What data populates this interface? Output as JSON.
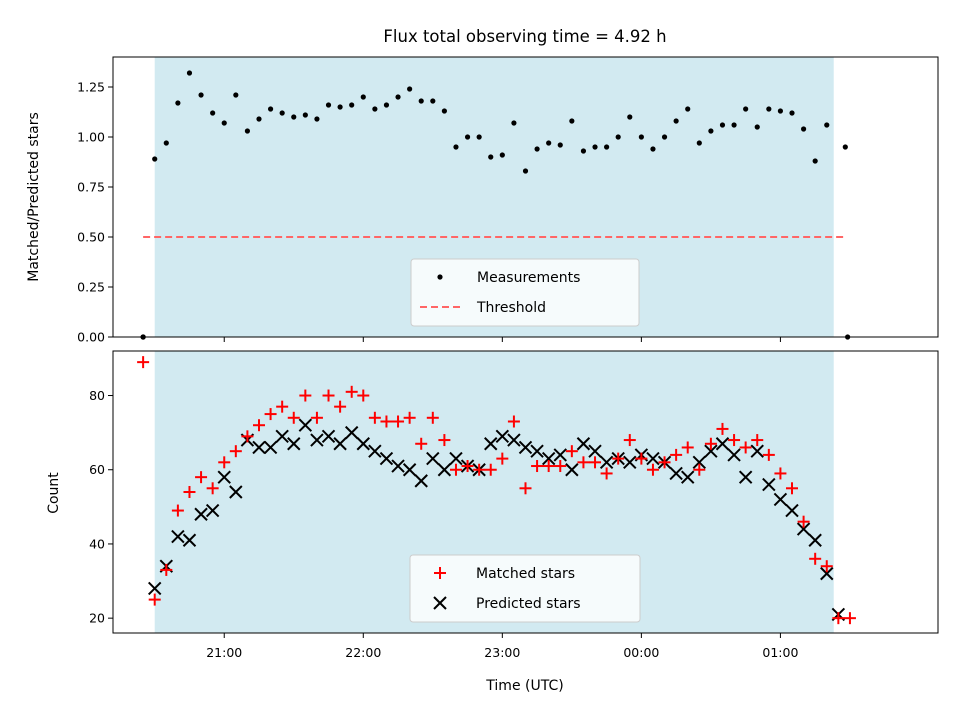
{
  "chart_data": [
    {
      "type": "scatter",
      "title": "Flux total observing time = 4.92 h",
      "xlabel": "",
      "ylabel": "Matched/Predicted stars",
      "xlim": [
        "20:12",
        "02:08"
      ],
      "ylim": [
        0,
        1.4
      ],
      "x_axis_type": "time",
      "xticks": [
        "21:00",
        "22:00",
        "23:00",
        "00:00",
        "01:00"
      ],
      "show_x_tick_labels": false,
      "yticks": [
        "0.00",
        "0.25",
        "0.50",
        "0.75",
        "1.00",
        "1.25"
      ],
      "grid": false,
      "legend_position": "lower-center",
      "shaded_range": [
        "20:30",
        "01:23"
      ],
      "shade_color": "#add8e6",
      "series": [
        {
          "name": "Measurements",
          "style": "dot",
          "color": "#000000",
          "x": [
            "20:25",
            "20:30",
            "20:35",
            "20:40",
            "20:45",
            "20:50",
            "20:55",
            "21:00",
            "21:05",
            "21:10",
            "21:15",
            "21:20",
            "21:25",
            "21:30",
            "21:35",
            "21:40",
            "21:45",
            "21:50",
            "21:55",
            "22:00",
            "22:05",
            "22:10",
            "22:15",
            "22:20",
            "22:25",
            "22:30",
            "22:35",
            "22:40",
            "22:45",
            "22:50",
            "22:55",
            "23:00",
            "23:05",
            "23:10",
            "23:15",
            "23:20",
            "23:25",
            "23:30",
            "23:35",
            "23:40",
            "23:45",
            "23:50",
            "23:55",
            "00:00",
            "00:05",
            "00:10",
            "00:15",
            "00:20",
            "00:25",
            "00:30",
            "00:35",
            "00:40",
            "00:45",
            "00:50",
            "00:55",
            "01:00",
            "01:05",
            "01:10",
            "01:15",
            "01:20",
            "01:28"
          ],
          "values": [
            0.0,
            0.89,
            0.97,
            1.17,
            1.32,
            1.21,
            1.12,
            1.07,
            1.21,
            1.03,
            1.09,
            1.14,
            1.12,
            1.1,
            1.11,
            1.09,
            1.16,
            1.15,
            1.16,
            1.2,
            1.14,
            1.16,
            1.2,
            1.24,
            1.18,
            1.18,
            1.13,
            0.95,
            1.0,
            1.0,
            0.9,
            0.91,
            1.07,
            0.83,
            0.94,
            0.97,
            0.96,
            1.08,
            0.93,
            0.95,
            0.95,
            1.0,
            1.1,
            1.0,
            0.94,
            1.0,
            1.08,
            1.14,
            0.97,
            1.03,
            1.06,
            1.06,
            1.14,
            1.05,
            1.14,
            1.13,
            1.12,
            1.04,
            0.88,
            1.06,
            0.95
          ]
        },
        {
          "name": "Threshold",
          "style": "dashed-line",
          "color": "#ff6666",
          "x": [
            "20:25",
            "01:28"
          ],
          "values": [
            0.5,
            0.5
          ]
        }
      ],
      "extra_points": [
        {
          "x": "20:25",
          "y": 0.0
        },
        {
          "x": "01:29",
          "y": 0.0
        }
      ]
    },
    {
      "type": "scatter",
      "title": "",
      "xlabel": "Time (UTC)",
      "ylabel": "Count",
      "xlim": [
        "20:12",
        "02:08"
      ],
      "ylim": [
        16,
        92
      ],
      "x_axis_type": "time",
      "xticks": [
        "21:00",
        "22:00",
        "23:00",
        "00:00",
        "01:00"
      ],
      "yticks": [
        "20",
        "40",
        "60",
        "80"
      ],
      "grid": false,
      "legend_position": "lower-center",
      "shaded_range": [
        "20:30",
        "01:23"
      ],
      "shade_color": "#add8e6",
      "x": [
        "20:25",
        "20:30",
        "20:35",
        "20:40",
        "20:45",
        "20:50",
        "20:55",
        "21:00",
        "21:05",
        "21:10",
        "21:15",
        "21:20",
        "21:25",
        "21:30",
        "21:35",
        "21:40",
        "21:45",
        "21:50",
        "21:55",
        "22:00",
        "22:05",
        "22:10",
        "22:15",
        "22:20",
        "22:25",
        "22:30",
        "22:35",
        "22:40",
        "22:45",
        "22:50",
        "22:55",
        "23:00",
        "23:05",
        "23:10",
        "23:15",
        "23:20",
        "23:25",
        "23:30",
        "23:35",
        "23:40",
        "23:45",
        "23:50",
        "23:55",
        "00:00",
        "00:05",
        "00:10",
        "00:15",
        "00:20",
        "00:25",
        "00:30",
        "00:35",
        "00:40",
        "00:45",
        "00:50",
        "00:55",
        "01:00",
        "01:05",
        "01:10",
        "01:15",
        "01:20",
        "01:25",
        "01:30"
      ],
      "series": [
        {
          "name": "Matched stars",
          "style": "plus",
          "color": "#ff0000",
          "values": [
            89,
            25,
            33,
            49,
            54,
            58,
            55,
            62,
            65,
            69,
            72,
            75,
            77,
            74,
            80,
            74,
            80,
            77,
            81,
            80,
            74,
            73,
            73,
            74,
            67,
            74,
            68,
            60,
            61,
            60,
            60,
            63,
            73,
            55,
            61,
            61,
            61,
            65,
            62,
            62,
            59,
            63,
            68,
            63,
            60,
            62,
            64,
            66,
            60,
            67,
            71,
            68,
            66,
            68,
            64,
            59,
            55,
            46,
            36,
            34,
            20,
            20
          ]
        },
        {
          "name": "Predicted stars",
          "style": "cross",
          "color": "#000000",
          "values": [
            null,
            28,
            34,
            42,
            41,
            48,
            49,
            58,
            54,
            68,
            66,
            66,
            69,
            67,
            72,
            68,
            69,
            67,
            70,
            67,
            65,
            63,
            61,
            60,
            57,
            63,
            60,
            63,
            61,
            60,
            67,
            69,
            68,
            66,
            65,
            63,
            64,
            60,
            67,
            65,
            62,
            63,
            62,
            64,
            63,
            62,
            59,
            58,
            62,
            65,
            67,
            64,
            58,
            65,
            56,
            52,
            49,
            44,
            41,
            32,
            21,
            null
          ]
        }
      ]
    }
  ]
}
